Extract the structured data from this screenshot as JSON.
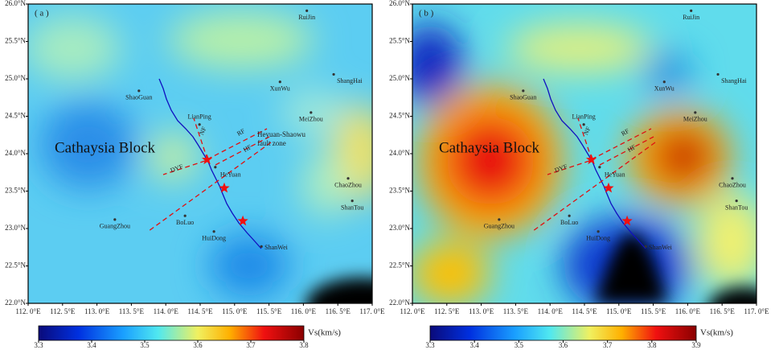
{
  "panels": [
    {
      "label": "( a )",
      "colorbar": {
        "label": "Vs(km/s)",
        "lim": [
          3.3,
          3.8
        ],
        "ticks": [
          3.3,
          3.4,
          3.5,
          3.6,
          3.7,
          3.8
        ]
      }
    },
    {
      "label": "( b )",
      "colorbar": {
        "label": "Vs(km/s)",
        "lim": [
          3.3,
          3.9
        ],
        "ticks": [
          3.3,
          3.4,
          3.5,
          3.6,
          3.7,
          3.8,
          3.9
        ]
      }
    }
  ],
  "map": {
    "xlim": [
      112.0,
      117.0
    ],
    "ylim": [
      22.0,
      26.0
    ],
    "xticks": [
      {
        "value": 112.0,
        "label": "112. 0°E"
      },
      {
        "value": 112.5,
        "label": "112. 5°E"
      },
      {
        "value": 113.0,
        "label": "113. 0°E"
      },
      {
        "value": 113.5,
        "label": "113. 5°E"
      },
      {
        "value": 114.0,
        "label": "114. 0°E"
      },
      {
        "value": 114.5,
        "label": "114. 5°E"
      },
      {
        "value": 115.0,
        "label": "115. 0°E"
      },
      {
        "value": 115.5,
        "label": "115. 5°E"
      },
      {
        "value": 116.0,
        "label": "116. 0°E"
      },
      {
        "value": 116.5,
        "label": "116. 5°E"
      },
      {
        "value": 117.0,
        "label": "117. 0°E"
      }
    ],
    "yticks": [
      {
        "value": 22.0,
        "label": "22.0°N"
      },
      {
        "value": 22.5,
        "label": "22.5°N"
      },
      {
        "value": 23.0,
        "label": "23.0°N"
      },
      {
        "value": 23.5,
        "label": "23.5°N"
      },
      {
        "value": 24.0,
        "label": "24.0°N"
      },
      {
        "value": 24.5,
        "label": "24.5°N"
      },
      {
        "value": 25.0,
        "label": "25.0°N"
      },
      {
        "value": 25.5,
        "label": "25.5°N"
      },
      {
        "value": 26.0,
        "label": "26.0°N"
      }
    ],
    "region_label": "Cathaysia Block",
    "fault_zone_label": [
      "Heyuan-Shaowu",
      "fault zone"
    ],
    "faults": [
      "NF",
      "RF",
      "HF",
      "DYF"
    ],
    "cities": [
      {
        "name": "RuiJin",
        "lon": 116.05,
        "lat": 25.91
      },
      {
        "name": "ShaoGuan",
        "lon": 113.61,
        "lat": 24.84
      },
      {
        "name": "XunWu",
        "lon": 115.66,
        "lat": 24.96
      },
      {
        "name": "ShangHai",
        "lon": 116.44,
        "lat": 25.06
      },
      {
        "name": "MeiZhou",
        "lon": 116.11,
        "lat": 24.55
      },
      {
        "name": "LianPing",
        "lon": 114.49,
        "lat": 24.39
      },
      {
        "name": "HeYuan",
        "lon": 114.72,
        "lat": 23.82
      },
      {
        "name": "ChaoZhou",
        "lon": 116.65,
        "lat": 23.67
      },
      {
        "name": "ShanTou",
        "lon": 116.71,
        "lat": 23.37
      },
      {
        "name": "GuangZhou",
        "lon": 113.26,
        "lat": 23.12
      },
      {
        "name": "BoLuo",
        "lon": 114.28,
        "lat": 23.17
      },
      {
        "name": "HuiDong",
        "lon": 114.7,
        "lat": 22.96
      },
      {
        "name": "ShanWei",
        "lon": 115.39,
        "lat": 22.76
      }
    ],
    "epicenters": [
      {
        "lon": 114.6,
        "lat": 23.92
      },
      {
        "lon": 114.85,
        "lat": 23.54
      },
      {
        "lon": 115.12,
        "lat": 23.1
      }
    ]
  }
}
